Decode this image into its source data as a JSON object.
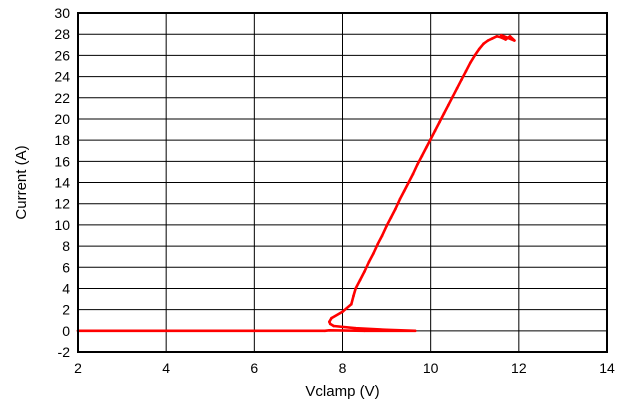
{
  "chart_data": {
    "type": "line",
    "title": "",
    "xlabel": "Vclamp (V)",
    "ylabel": "Current (A)",
    "xlim": [
      2,
      14
    ],
    "ylim": [
      -2,
      30
    ],
    "x_ticks": [
      "2",
      "4",
      "6",
      "8",
      "10",
      "12",
      "14"
    ],
    "y_ticks": [
      "-2",
      "0",
      "2",
      "4",
      "6",
      "8",
      "10",
      "12",
      "14",
      "16",
      "18",
      "20",
      "22",
      "24",
      "26",
      "28",
      "30"
    ],
    "grid": true,
    "series": [
      {
        "color": "#ff0000",
        "x": [
          2.0,
          4.0,
          6.0,
          7.6,
          7.7,
          8.5,
          9.65,
          9.0,
          8.3,
          7.8,
          7.72,
          7.7,
          7.75,
          8.0,
          8.2,
          8.25,
          8.3,
          8.4,
          8.5,
          8.6,
          8.7,
          8.8,
          8.9,
          9.0,
          9.1,
          9.2,
          9.3,
          9.4,
          9.5,
          9.6,
          9.7,
          9.8,
          9.9,
          10.0,
          10.1,
          10.2,
          10.3,
          10.4,
          10.5,
          10.6,
          10.7,
          10.8,
          10.9,
          11.0,
          11.1,
          11.2,
          11.3,
          11.4,
          11.5,
          11.6,
          11.7,
          11.8,
          11.9,
          11.6
        ],
        "y": [
          0.0,
          0.0,
          0.0,
          0.0,
          0.05,
          0.0,
          0.0,
          0.1,
          0.25,
          0.45,
          0.65,
          0.85,
          1.2,
          1.8,
          2.5,
          3.3,
          4.0,
          4.8,
          5.6,
          6.5,
          7.3,
          8.2,
          9.0,
          9.9,
          10.7,
          11.5,
          12.4,
          13.2,
          14.0,
          14.8,
          15.7,
          16.5,
          17.3,
          18.1,
          18.9,
          19.7,
          20.5,
          21.3,
          22.1,
          22.9,
          23.7,
          24.5,
          25.3,
          26.0,
          26.6,
          27.1,
          27.4,
          27.6,
          27.8,
          27.7,
          27.5,
          27.8,
          27.4,
          27.9
        ]
      }
    ]
  }
}
